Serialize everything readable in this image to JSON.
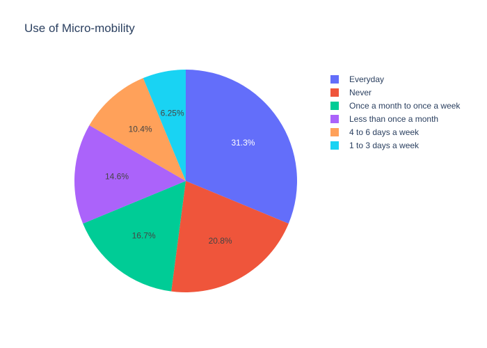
{
  "chart_data": {
    "type": "pie",
    "title": "Use of Micro-mobility",
    "legend_position": "right",
    "slices": [
      {
        "label": "Everyday",
        "value": 31.25,
        "display": "31.3%",
        "color": "#636efa",
        "text_color": "#ffffff"
      },
      {
        "label": "Never",
        "value": 20.83,
        "display": "20.8%",
        "color": "#ef553b",
        "text_color": "#444444"
      },
      {
        "label": "Once a month to once a week",
        "value": 16.67,
        "display": "16.7%",
        "color": "#00cc96",
        "text_color": "#444444"
      },
      {
        "label": "Less than once a month",
        "value": 14.58,
        "display": "14.6%",
        "color": "#ab63fa",
        "text_color": "#444444"
      },
      {
        "label": "4 to 6 days a week",
        "value": 10.42,
        "display": "10.4%",
        "color": "#ffa15a",
        "text_color": "#444444"
      },
      {
        "label": "1 to 3 days a week",
        "value": 6.25,
        "display": "6.25%",
        "color": "#19d3f3",
        "text_color": "#444444"
      }
    ]
  }
}
